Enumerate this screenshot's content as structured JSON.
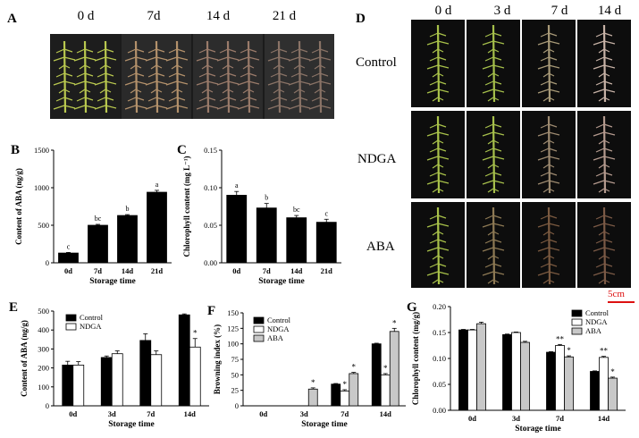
{
  "panel_a": {
    "label": "A",
    "columns": [
      "0 d",
      "7d",
      "14 d",
      "21 d"
    ],
    "branch_colors": [
      "#b9c84f",
      "#b3916b",
      "#9a7b6a",
      "#8a7366"
    ]
  },
  "panel_d": {
    "label": "D",
    "columns": [
      "0 d",
      "3 d",
      "7 d",
      "14 d"
    ],
    "rows": [
      "Control",
      "NDGA",
      "ABA"
    ],
    "scale_bar": "5cm"
  },
  "chart_data": [
    {
      "panel": "B",
      "type": "bar",
      "ylabel": "Content of ABA (ng/g)",
      "xlabel": "Storage time",
      "categories": [
        "0d",
        "7d",
        "14d",
        "21d"
      ],
      "values": [
        130,
        500,
        630,
        940
      ],
      "errors": [
        8,
        12,
        12,
        25
      ],
      "letters": [
        "c",
        "bc",
        "b",
        "a"
      ],
      "ylim": [
        0,
        1500
      ],
      "yticks": [
        "0",
        "500",
        "1000",
        "1500"
      ],
      "colors": [
        "#000000"
      ]
    },
    {
      "panel": "C",
      "type": "bar",
      "ylabel": "Chlorophyll content  (mg L⁻¹)",
      "xlabel": "Storage time",
      "categories": [
        "0d",
        "7d",
        "14d",
        "21d"
      ],
      "values": [
        0.09,
        0.073,
        0.06,
        0.054
      ],
      "errors": [
        0.005,
        0.006,
        0.003,
        0.004
      ],
      "letters": [
        "a",
        "b",
        "bc",
        "c"
      ],
      "ylim": [
        0,
        0.15
      ],
      "yticks": [
        "0.00",
        "0.05",
        "0.10",
        "0.15"
      ],
      "colors": [
        "#000000"
      ]
    },
    {
      "panel": "E",
      "type": "bar",
      "ylabel": "Content of ABA (ng/g)",
      "xlabel": "Storage time",
      "categories": [
        "0d",
        "3d",
        "7d",
        "14d"
      ],
      "series": [
        {
          "name": "Control",
          "values": [
            215,
            255,
            345,
            480
          ],
          "errors": [
            20,
            8,
            35,
            5
          ]
        },
        {
          "name": "NDGA",
          "values": [
            215,
            275,
            270,
            310
          ],
          "errors": [
            18,
            15,
            20,
            45
          ]
        }
      ],
      "marks": [
        {
          "series": 1,
          "index": 3,
          "text": "*"
        }
      ],
      "legend": "top-left",
      "ylim": [
        0,
        500
      ],
      "yticks": [
        "0",
        "100",
        "200",
        "300",
        "400",
        "500"
      ],
      "colors": [
        "#000000",
        "#ffffff"
      ]
    },
    {
      "panel": "F",
      "type": "bar",
      "ylabel": "Browning index (%)",
      "xlabel": "Storage time",
      "categories": [
        "0d",
        "3d",
        "7d",
        "14d"
      ],
      "series": [
        {
          "name": "Control",
          "values": [
            0,
            0,
            35,
            100
          ],
          "errors": [
            0,
            0,
            1,
            1
          ]
        },
        {
          "name": "NDGA",
          "values": [
            0,
            0,
            24,
            50
          ],
          "errors": [
            0,
            0,
            2,
            2
          ]
        },
        {
          "name": "ABA",
          "values": [
            0,
            27,
            52,
            120
          ],
          "errors": [
            0,
            2,
            2,
            5
          ]
        }
      ],
      "marks": [
        {
          "series": 2,
          "index": 1,
          "text": "*"
        },
        {
          "series": 1,
          "index": 2,
          "text": "*"
        },
        {
          "series": 2,
          "index": 2,
          "text": "*"
        },
        {
          "series": 1,
          "index": 3,
          "text": "*"
        },
        {
          "series": 2,
          "index": 3,
          "text": "*"
        }
      ],
      "legend": "top-left",
      "ylim": [
        0,
        150
      ],
      "yticks": [
        "0",
        "25",
        "50",
        "75",
        "100",
        "125",
        "150"
      ],
      "colors": [
        "#000000",
        "#ffffff",
        "#c8c8c8"
      ]
    },
    {
      "panel": "G",
      "type": "bar",
      "ylabel": "Chlorophyll content  (mg/g)",
      "xlabel": "Storage time",
      "categories": [
        "0d",
        "3d",
        "7d",
        "14d"
      ],
      "series": [
        {
          "name": "Control",
          "values": [
            0.155,
            0.146,
            0.112,
            0.075
          ],
          "errors": [
            0.001,
            0.001,
            0.001,
            0.001
          ]
        },
        {
          "name": "NDGA",
          "values": [
            0.155,
            0.15,
            0.125,
            0.102
          ],
          "errors": [
            0.001,
            0.001,
            0.002,
            0.002
          ]
        },
        {
          "name": "ABA",
          "values": [
            0.167,
            0.131,
            0.103,
            0.062
          ],
          "errors": [
            0.003,
            0.002,
            0.002,
            0.002
          ]
        }
      ],
      "marks": [
        {
          "series": 1,
          "index": 2,
          "text": "**"
        },
        {
          "series": 2,
          "index": 2,
          "text": "*"
        },
        {
          "series": 1,
          "index": 3,
          "text": "**"
        },
        {
          "series": 2,
          "index": 3,
          "text": "*"
        }
      ],
      "legend": "top-right",
      "ylim": [
        0,
        0.2
      ],
      "yticks": [
        "0.00",
        "0.05",
        "0.10",
        "0.15",
        "0.20"
      ],
      "colors": [
        "#000000",
        "#ffffff",
        "#c8c8c8"
      ]
    }
  ]
}
